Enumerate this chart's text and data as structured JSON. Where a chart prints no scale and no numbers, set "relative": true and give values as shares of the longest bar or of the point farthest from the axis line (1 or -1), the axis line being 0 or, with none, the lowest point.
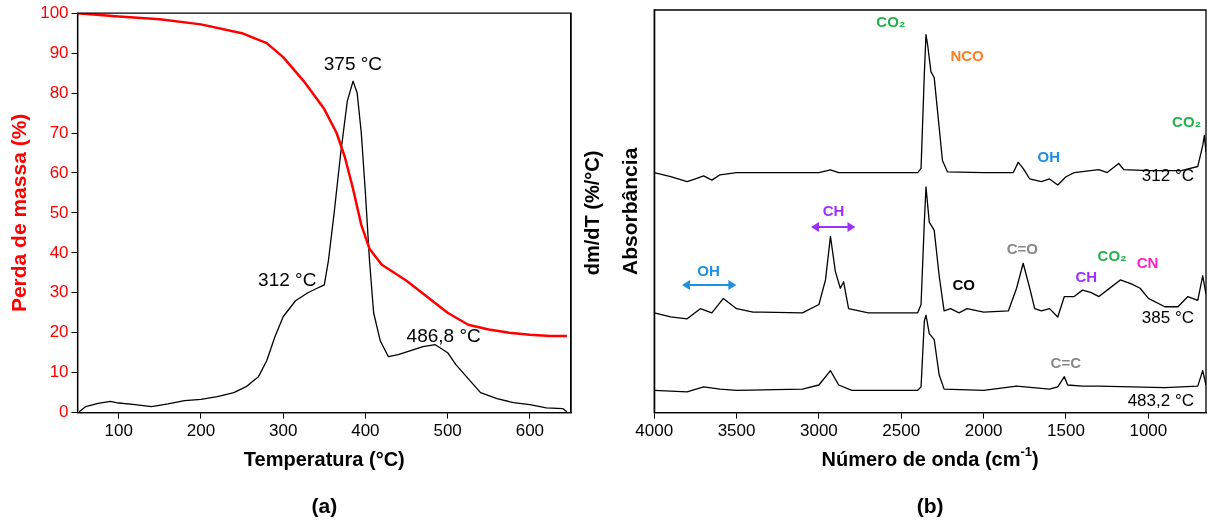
{
  "chart_data": [
    {
      "type": "line",
      "xlabel": "Temperatura (°C)",
      "ylabel": "Perda de massa (%)",
      "y2label": "dm/dT (%/°C)",
      "xlim": [
        50,
        650
      ],
      "xticks": [
        100,
        200,
        300,
        400,
        500,
        600
      ],
      "ylim": [
        0,
        100
      ],
      "yticks": [
        0,
        10,
        20,
        30,
        40,
        50,
        60,
        70,
        80,
        90,
        100
      ],
      "grid": false,
      "legend": false,
      "marker": "none",
      "series": [
        {
          "color": "#ff0000",
          "x": [
            50,
            100,
            150,
            200,
            250,
            280,
            300,
            325,
            350,
            365,
            375,
            385,
            395,
            405,
            420,
            450,
            475,
            500,
            525,
            550,
            575,
            600,
            625,
            645
          ],
          "values": [
            100,
            99.2,
            98.5,
            97.2,
            95,
            92.5,
            89,
            83,
            76,
            70,
            64,
            56,
            47,
            41,
            37,
            33,
            29,
            25,
            22,
            20.8,
            20,
            19.5,
            19.2,
            19.2
          ]
        },
        {
          "color": "#000000",
          "x": [
            52,
            60,
            75,
            90,
            100,
            120,
            140,
            160,
            180,
            200,
            220,
            240,
            255,
            270,
            280,
            290,
            300,
            315,
            330,
            340,
            350,
            355,
            362,
            370,
            378,
            385,
            390,
            395,
            400,
            405,
            410,
            418,
            428,
            440,
            455,
            470,
            485,
            500,
            510,
            525,
            540,
            560,
            580,
            600,
            620,
            640,
            645
          ],
          "values": [
            0.2,
            1.5,
            2.3,
            2.8,
            2.4,
            2,
            1.5,
            2.2,
            3,
            3.3,
            4,
            5,
            6.5,
            9,
            13,
            19,
            24,
            28,
            30,
            31,
            32,
            38,
            50,
            65,
            78,
            83,
            80,
            70,
            55,
            38,
            25,
            18,
            14,
            14.5,
            15.5,
            16.5,
            17,
            15,
            12,
            8.5,
            5,
            3.5,
            2.5,
            2,
            1.2,
            1,
            0.2
          ]
        }
      ],
      "annotations": [
        "375 °C",
        "312 °C",
        "486,8 °C",
        "(a)"
      ]
    },
    {
      "type": "line",
      "relative": true,
      "xlabel": "Número de onda (cm$^{-1}$)",
      "ylabel": "Absorbância",
      "xlim": [
        4000,
        650
      ],
      "xticks": [
        4000,
        3500,
        3000,
        2500,
        2000,
        1500,
        1000
      ],
      "grid": false,
      "legend": false,
      "marker": "none",
      "series": [
        {
          "name": "312 °C",
          "color": "#000000",
          "x": [
            4000,
            3900,
            3800,
            3750,
            3700,
            3650,
            3600,
            3500,
            3000,
            2930,
            2880,
            2400,
            2380,
            2360,
            2350,
            2340,
            2320,
            2300,
            2280,
            2250,
            2220,
            2000,
            1820,
            1790,
            1760,
            1720,
            1650,
            1600,
            1550,
            1500,
            1450,
            1300,
            1250,
            1180,
            1150,
            1000,
            800,
            700,
            670,
            660,
            650
          ],
          "values": [
            0.635,
            0.624,
            0.611,
            0.618,
            0.626,
            0.615,
            0.629,
            0.635,
            0.635,
            0.642,
            0.635,
            0.635,
            0.646,
            0.896,
            1,
            0.973,
            0.902,
            0.886,
            0.798,
            0.667,
            0.637,
            0.635,
            0.635,
            0.662,
            0.646,
            0.618,
            0.611,
            0.618,
            0.602,
            0.624,
            0.635,
            0.643,
            0.635,
            0.659,
            0.643,
            0.64,
            0.64,
            0.651,
            0.706,
            0.733,
            0.689
          ]
        },
        {
          "name": "385 °C",
          "color": "#000000",
          "x": [
            4000,
            3900,
            3800,
            3720,
            3650,
            3580,
            3500,
            3400,
            3100,
            3000,
            2960,
            2930,
            2900,
            2870,
            2850,
            2820,
            2700,
            2400,
            2380,
            2360,
            2350,
            2330,
            2300,
            2270,
            2240,
            2200,
            2150,
            2100,
            2000,
            1850,
            1800,
            1760,
            1720,
            1690,
            1650,
            1600,
            1550,
            1510,
            1450,
            1400,
            1350,
            1300,
            1250,
            1170,
            1100,
            1050,
            1000,
            900,
            820,
            760,
            700,
            670,
            650
          ],
          "values": [
            0.264,
            0.253,
            0.248,
            0.275,
            0.264,
            0.302,
            0.275,
            0.266,
            0.264,
            0.286,
            0.351,
            0.466,
            0.373,
            0.329,
            0.346,
            0.275,
            0.264,
            0.264,
            0.286,
            0.504,
            0.597,
            0.504,
            0.482,
            0.362,
            0.269,
            0.275,
            0.264,
            0.275,
            0.266,
            0.269,
            0.329,
            0.395,
            0.329,
            0.275,
            0.269,
            0.275,
            0.253,
            0.307,
            0.307,
            0.324,
            0.318,
            0.307,
            0.324,
            0.351,
            0.34,
            0.329,
            0.302,
            0.28,
            0.28,
            0.307,
            0.297,
            0.362,
            0.313
          ]
        },
        {
          "name": "483,2 °C",
          "color": "#000000",
          "x": [
            4000,
            3800,
            3700,
            3600,
            3500,
            3100,
            3000,
            2930,
            2880,
            2800,
            2400,
            2380,
            2360,
            2350,
            2330,
            2300,
            2270,
            2240,
            2000,
            1800,
            1700,
            1600,
            1550,
            1510,
            1490,
            1400,
            1300,
            1100,
            900,
            700,
            670,
            650
          ],
          "values": [
            0.059,
            0.055,
            0.068,
            0.062,
            0.059,
            0.062,
            0.073,
            0.111,
            0.073,
            0.059,
            0.059,
            0.068,
            0.242,
            0.258,
            0.209,
            0.193,
            0.1,
            0.062,
            0.059,
            0.07,
            0.066,
            0.062,
            0.068,
            0.095,
            0.073,
            0.07,
            0.07,
            0.068,
            0.066,
            0.07,
            0.111,
            0.073
          ]
        }
      ],
      "annotations": [
        "CO₂",
        "NCO",
        "OH",
        "CO₂",
        "CH",
        "OH",
        "CO",
        "C=O",
        "CH",
        "CO₂",
        "CN",
        "C=C",
        "(b)"
      ]
    }
  ]
}
